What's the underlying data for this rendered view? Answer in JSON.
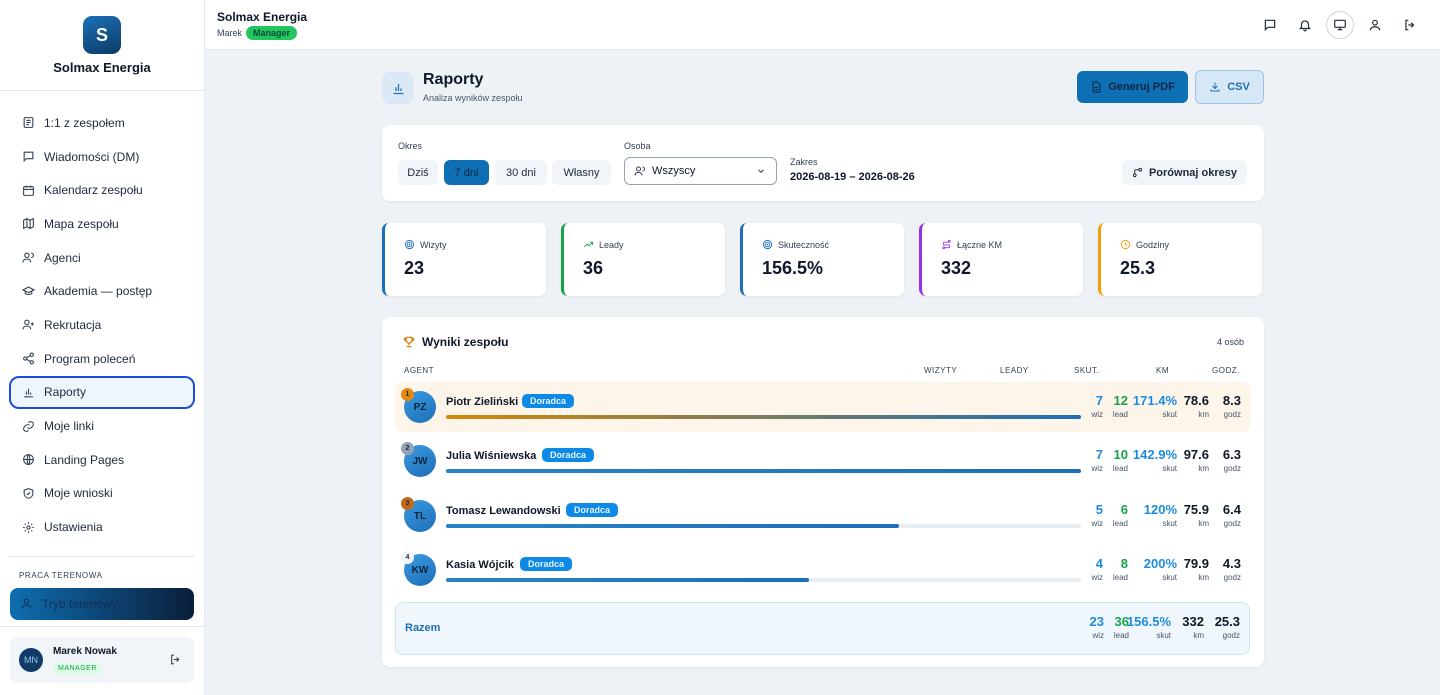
{
  "brand": {
    "logo_letter": "S",
    "name": "Solmax Energia"
  },
  "sidebar": {
    "items": [
      {
        "label": "1:1 z zespołem",
        "icon": "list-icon"
      },
      {
        "label": "Wiadomości (DM)",
        "icon": "chat-icon"
      },
      {
        "label": "Kalendarz zespołu",
        "icon": "calendar-icon"
      },
      {
        "label": "Mapa zespołu",
        "icon": "map-icon"
      },
      {
        "label": "Agenci",
        "icon": "users-icon"
      },
      {
        "label": "Akademia — postęp",
        "icon": "graduation-cap-icon"
      },
      {
        "label": "Rekrutacja",
        "icon": "user-plus-icon"
      },
      {
        "label": "Program poleceń",
        "icon": "share-icon"
      },
      {
        "label": "Raporty",
        "icon": "bar-chart-icon",
        "active": true
      },
      {
        "label": "Moje linki",
        "icon": "link-icon"
      },
      {
        "label": "Landing Pages",
        "icon": "globe-icon"
      },
      {
        "label": "Moje wnioski",
        "icon": "shield-check-icon"
      },
      {
        "label": "Ustawienia",
        "icon": "gear-icon"
      }
    ],
    "section_label": "PRACA TERENOWA",
    "field_mode_label": "Tryb terenowy",
    "user": {
      "initials": "MN",
      "name": "Marek Nowak",
      "role": "MANAGER"
    }
  },
  "topbar": {
    "title": "Solmax Energia",
    "user": "Marek",
    "badge": "Manager"
  },
  "page": {
    "title": "Raporty",
    "subtitle": "Analiza wyników zespołu",
    "pdf_button": "Generuj PDF",
    "csv_button": "CSV"
  },
  "filters": {
    "period_label": "Okres",
    "periods": [
      "Dziś",
      "7 dni",
      "30 dni",
      "Własny"
    ],
    "active_period": "7 dni",
    "person_label": "Osoba",
    "person_value": "Wszyscy",
    "range_label": "Zakres",
    "range_value": "2026-08-19 – 2026-08-26",
    "compare_button": "Porównaj okresy"
  },
  "stats": [
    {
      "label": "Wizyty",
      "value": "23",
      "color": "#1d6fb8",
      "icon": "target-icon"
    },
    {
      "label": "Leady",
      "value": "36",
      "color": "#16a34a",
      "icon": "trending-up-icon"
    },
    {
      "label": "Skuteczność",
      "value": "156.5%",
      "color": "#1d6fb8",
      "icon": "target-icon"
    },
    {
      "label": "Łączne KM",
      "value": "332",
      "color": "#9333ea",
      "icon": "route-icon"
    },
    {
      "label": "Godziny",
      "value": "25.3",
      "color": "#f59e0b",
      "icon": "clock-icon"
    }
  ],
  "team": {
    "title": "Wyniki zespołu",
    "count": "4 osób",
    "columns": {
      "agent": "AGENT",
      "visits": "WIZYTY",
      "leads": "LEADY",
      "eff": "SKUT.",
      "km": "KM",
      "hours": "GODZ."
    },
    "units": {
      "visits": "wiz",
      "leads": "lead",
      "eff": "skut",
      "km": "km",
      "hours": "godz"
    },
    "agents": [
      {
        "rank": "1",
        "rank_color": "#e38a12",
        "initials": "PZ",
        "name": "Piotr Zieliński",
        "role": "Doradca",
        "progress": 1.0,
        "visits": "7",
        "leads": "12",
        "eff": "171.4%",
        "km": "78.6",
        "hours": "8.3"
      },
      {
        "rank": "2",
        "rank_color": "#94a3b8",
        "initials": "JW",
        "name": "Julia Wiśniewska",
        "role": "Doradca",
        "progress": 1.0,
        "visits": "7",
        "leads": "10",
        "eff": "142.9%",
        "km": "97.6",
        "hours": "6.3"
      },
      {
        "rank": "3",
        "rank_color": "#c2681a",
        "initials": "TL",
        "name": "Tomasz Lewandowski",
        "role": "Doradca",
        "progress": 0.714,
        "visits": "5",
        "leads": "6",
        "eff": "120%",
        "km": "75.9",
        "hours": "6.4"
      },
      {
        "rank": "4",
        "rank_color": "#f1f5f9",
        "initials": "KW",
        "name": "Kasia Wójcik",
        "role": "Doradca",
        "progress": 0.571,
        "visits": "4",
        "leads": "8",
        "eff": "200%",
        "km": "79.9",
        "hours": "4.3"
      }
    ],
    "total": {
      "label": "Razem",
      "visits": "23",
      "leads": "36",
      "eff": "156.5%",
      "km": "332",
      "hours": "25.3"
    }
  }
}
